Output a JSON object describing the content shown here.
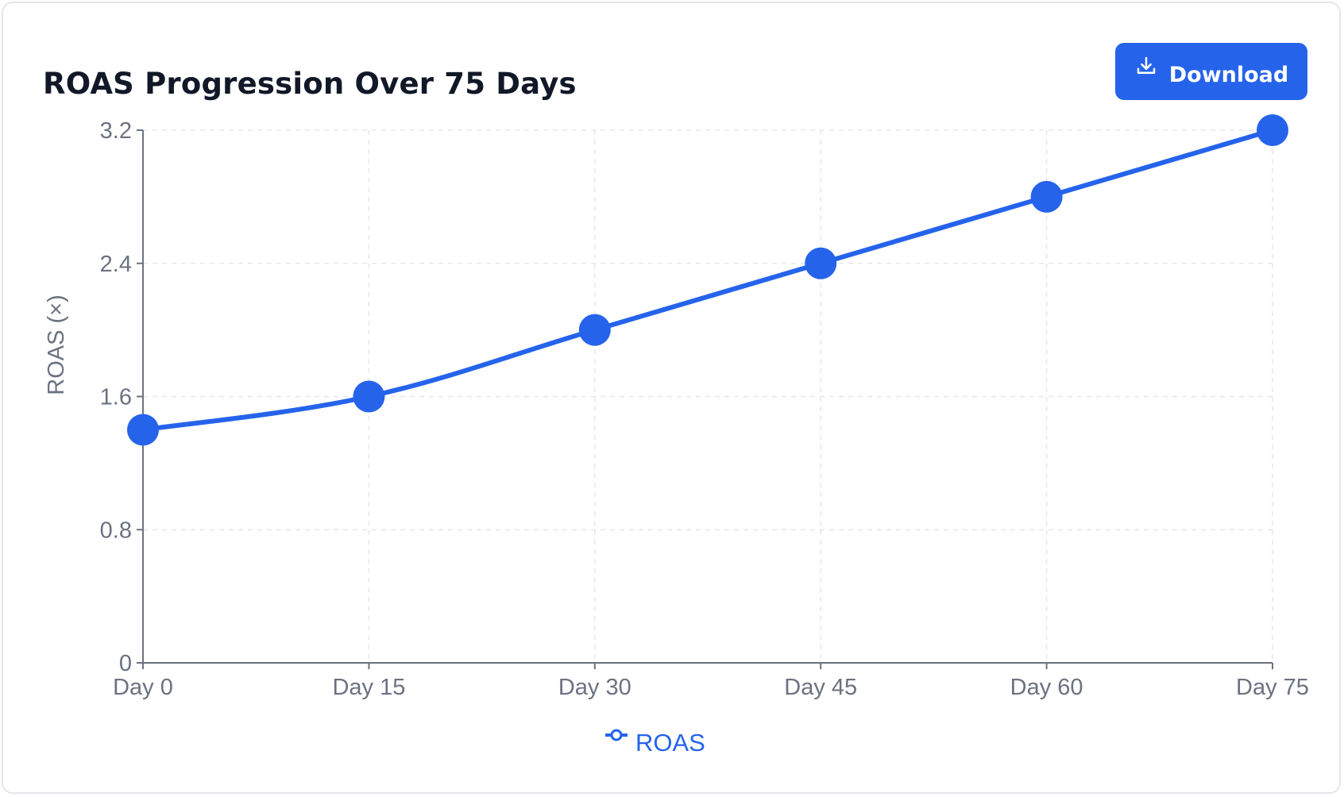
{
  "card": {
    "title": "ROAS Progression Over 75 Days",
    "download_label": "Download",
    "download_icon": "download-icon"
  },
  "chart_data": {
    "type": "line",
    "x": [
      "Day 0",
      "Day 15",
      "Day 30",
      "Day 45",
      "Day 60",
      "Day 75"
    ],
    "series": [
      {
        "name": "ROAS",
        "values": [
          1.4,
          1.6,
          2.0,
          2.4,
          2.8,
          3.2
        ],
        "color": "#2563eb"
      }
    ],
    "ylabel": "ROAS (×)",
    "ylim": [
      0,
      3.2
    ],
    "yticks": [
      0,
      0.8,
      1.6,
      2.4,
      3.2
    ],
    "ytick_labels": [
      "0",
      "0.8",
      "1.6",
      "2.4",
      "3.2"
    ],
    "grid": true,
    "legend": "bottom-center",
    "smooth": true
  }
}
